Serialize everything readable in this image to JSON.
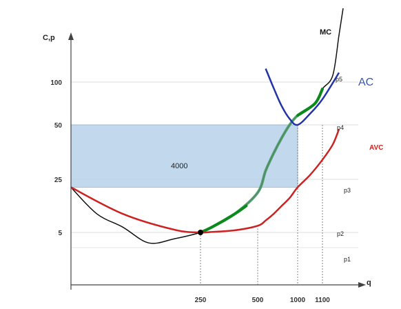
{
  "chart_data": {
    "type": "line",
    "xlabel": "q",
    "ylabel": "C,p",
    "x_ticks": [
      "250",
      "500",
      "1000",
      "1100"
    ],
    "y_ticks": [
      "5",
      "25",
      "50",
      "100"
    ],
    "grid": true,
    "series": [
      {
        "name": "MC",
        "color": "#111111",
        "points": [
          [
            0,
            22
          ],
          [
            50,
            12
          ],
          [
            100,
            7
          ],
          [
            150,
            4
          ],
          [
            200,
            4.4
          ],
          [
            250,
            5
          ],
          [
            300,
            7
          ],
          [
            400,
            12
          ],
          [
            500,
            20
          ],
          [
            600,
            29
          ],
          [
            700,
            37
          ],
          [
            800,
            44
          ],
          [
            900,
            50
          ],
          [
            1000,
            61
          ],
          [
            1070,
            75
          ],
          [
            1100,
            92
          ],
          [
            1150,
            105
          ],
          [
            1180,
            135
          ],
          [
            1200,
            155
          ]
        ]
      },
      {
        "name": "AC",
        "color": "#2233aa",
        "points": [
          [
            600,
            110
          ],
          [
            700,
            93
          ],
          [
            800,
            72
          ],
          [
            900,
            57
          ],
          [
            1000,
            50
          ],
          [
            1050,
            63
          ],
          [
            1100,
            80
          ],
          [
            1180,
            107
          ]
        ]
      },
      {
        "name": "AVC",
        "color": "#cc2222",
        "points": [
          [
            0,
            22
          ],
          [
            100,
            12
          ],
          [
            200,
            6
          ],
          [
            250,
            5
          ],
          [
            300,
            5.2
          ],
          [
            400,
            5.8
          ],
          [
            500,
            7.5
          ],
          [
            600,
            9.5
          ],
          [
            700,
            12
          ],
          [
            800,
            15
          ],
          [
            900,
            18
          ],
          [
            1000,
            22
          ],
          [
            1050,
            27
          ],
          [
            1100,
            34
          ],
          [
            1150,
            41
          ],
          [
            1180,
            48
          ]
        ]
      }
    ],
    "highlight_segments": [
      [
        [
          250,
          5
        ],
        [
          300,
          7
        ],
        [
          400,
          12
        ],
        [
          450,
          15
        ]
      ],
      [
        [
          1000,
          61
        ],
        [
          1070,
          75
        ],
        [
          1100,
          92
        ]
      ]
    ],
    "shaded_region": {
      "x": [
        0,
        1000
      ],
      "y": [
        22,
        50
      ],
      "label": "4000",
      "color": "#bcd4ea"
    },
    "marked_point": [
      250,
      5
    ],
    "price_labels": [
      "p5",
      "p4",
      "p3",
      "p2",
      "p1"
    ]
  }
}
